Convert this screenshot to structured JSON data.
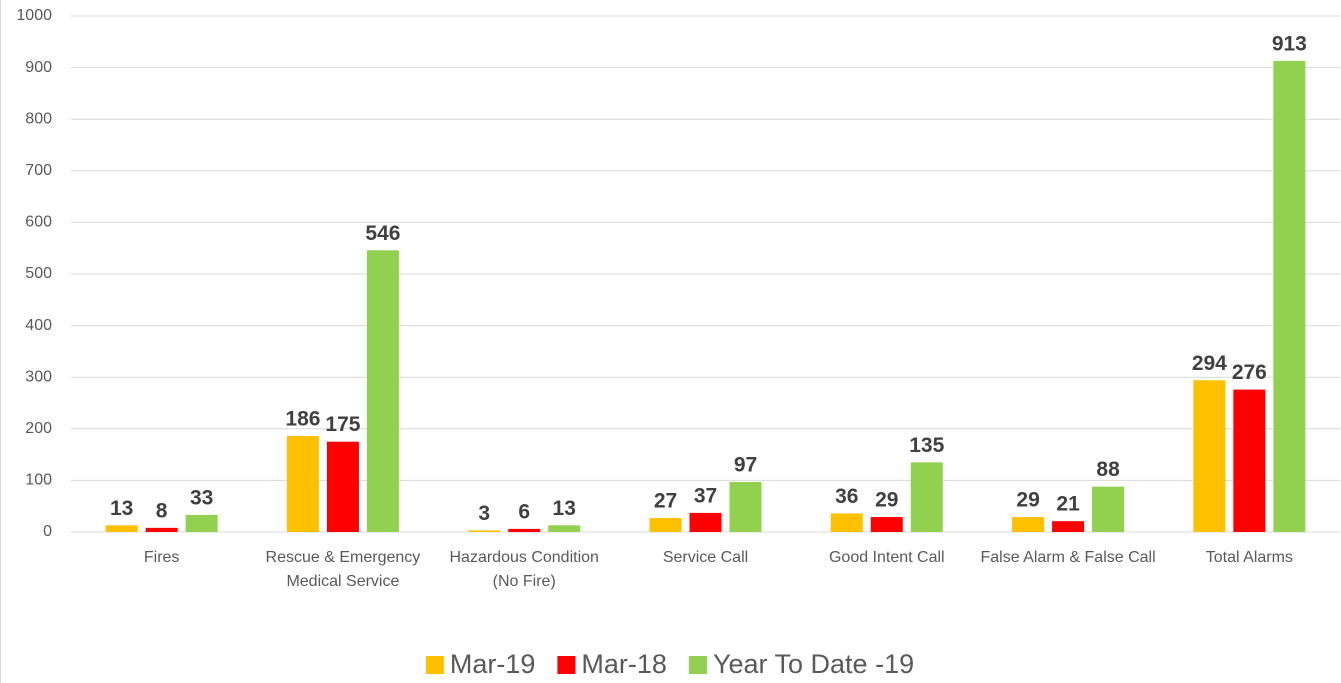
{
  "chart_data": {
    "type": "bar",
    "categories": [
      "Fires",
      "Rescue & Emergency Medical Service",
      "Hazardous Condition (No Fire)",
      "Service Call",
      "Good Intent Call",
      "False Alarm & False Call",
      "Total Alarms"
    ],
    "series": [
      {
        "name": "Mar-19",
        "color": "#ffc000",
        "values": [
          13,
          186,
          3,
          27,
          36,
          29,
          294
        ]
      },
      {
        "name": "Mar-18",
        "color": "#ff0000",
        "values": [
          8,
          175,
          6,
          37,
          29,
          21,
          276
        ]
      },
      {
        "name": "Year To Date -19",
        "color": "#92d050",
        "values": [
          33,
          546,
          13,
          97,
          135,
          88,
          913
        ]
      }
    ],
    "ylim": [
      0,
      1000
    ],
    "yticks": [
      0,
      100,
      200,
      300,
      400,
      500,
      600,
      700,
      800,
      900,
      1000
    ],
    "grid": true,
    "legend": "bottom"
  }
}
